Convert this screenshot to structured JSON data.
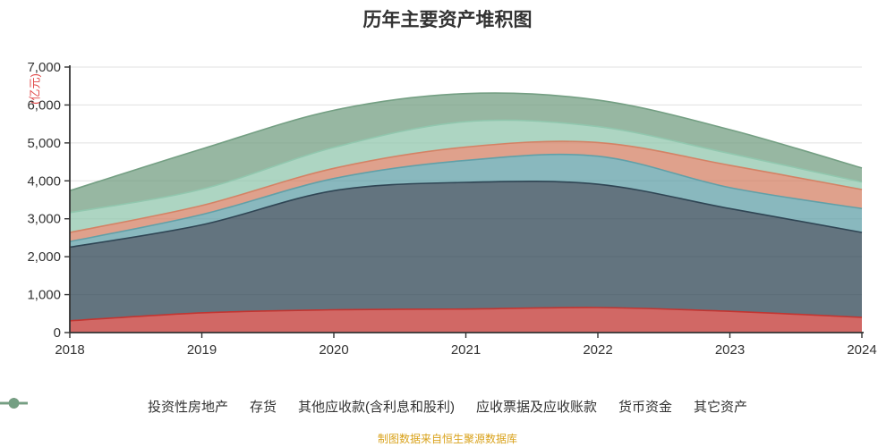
{
  "title": "历年主要资产堆积图",
  "source_note": "制图数据来自恒生聚源数据库",
  "colors": {
    "title_text": "#333333",
    "axis_line": "#333333",
    "tick_label": "#333333",
    "grid_line": "#e0e0e0",
    "legend_text": "#333333",
    "y_unit_label": "#e04848",
    "source_note": "#d9a21b",
    "background": "#ffffff"
  },
  "chart_data": {
    "type": "area",
    "stacked": true,
    "smooth": true,
    "title": "历年主要资产堆积图",
    "xlabel": "",
    "ylabel": "(亿元)",
    "x": [
      "2018",
      "2019",
      "2020",
      "2021",
      "2022",
      "2023",
      "2024"
    ],
    "ylim": [
      0,
      7000
    ],
    "ytick_interval": 1000,
    "ytick_labels": [
      "0",
      "1,000",
      "2,000",
      "3,000",
      "4,000",
      "5,000",
      "6,000",
      "7,000"
    ],
    "grid": true,
    "legend_position": "bottom",
    "area_opacity": 0.75,
    "series": [
      {
        "name": "投资性房地产",
        "color": "#c23531",
        "values": [
          310,
          520,
          600,
          620,
          660,
          560,
          400
        ]
      },
      {
        "name": "存货",
        "color": "#2f4554",
        "values": [
          1940,
          2320,
          3140,
          3340,
          3250,
          2710,
          2240
        ]
      },
      {
        "name": "其他应收款(含利息和股利)",
        "color": "#61a0a8",
        "values": [
          150,
          270,
          320,
          580,
          740,
          550,
          630
        ]
      },
      {
        "name": "应收票据及应收账款",
        "color": "#d48265",
        "values": [
          240,
          240,
          270,
          350,
          360,
          590,
          500
        ]
      },
      {
        "name": "货币资金",
        "color": "#91c7ae",
        "values": [
          520,
          430,
          550,
          670,
          420,
          310,
          200
        ]
      },
      {
        "name": "其它资产",
        "color": "#749f83",
        "values": [
          580,
          1060,
          980,
          740,
          700,
          630,
          370
        ]
      }
    ]
  }
}
